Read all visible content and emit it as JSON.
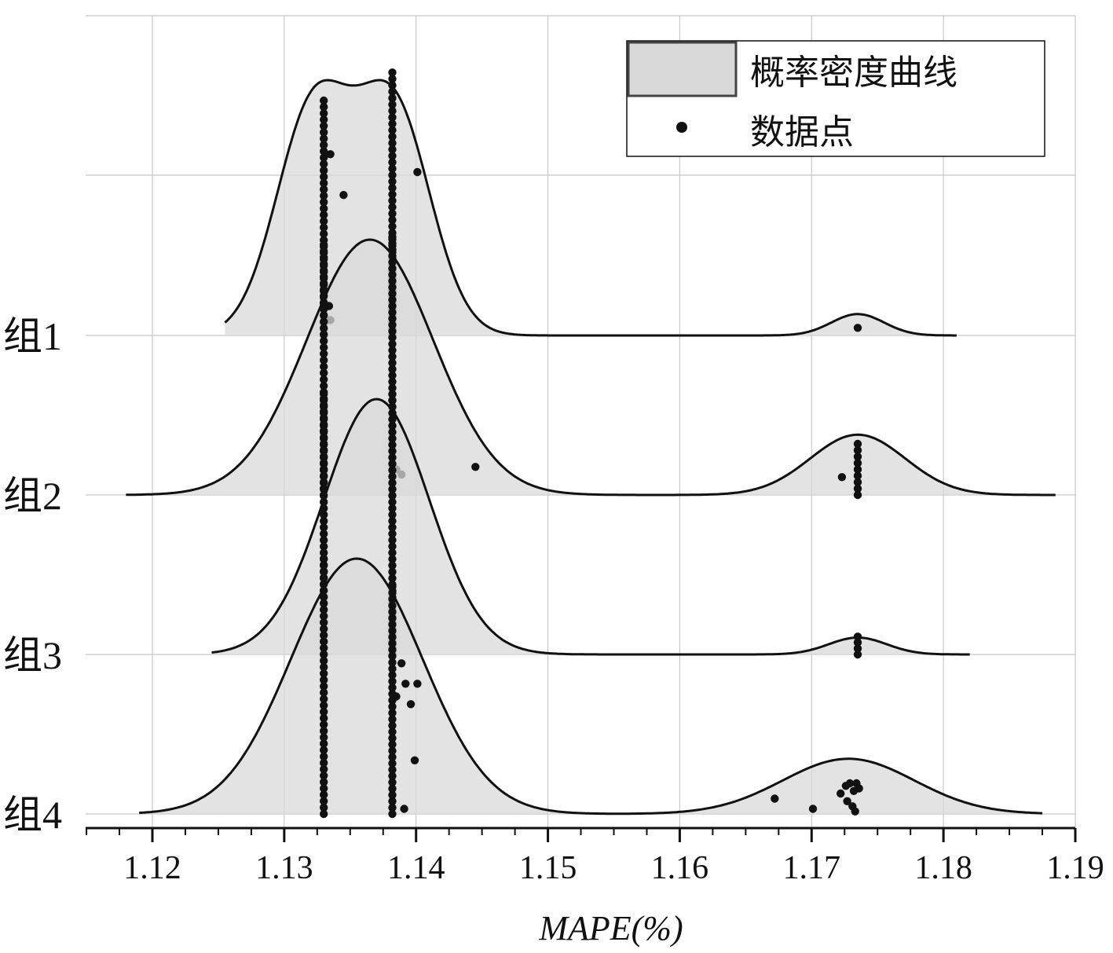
{
  "chart_data": {
    "type": "ridgeline",
    "xlabel": "MAPE(%)",
    "xlim": [
      1.115,
      1.19
    ],
    "x_ticks": [
      "1.12",
      "1.13",
      "1.14",
      "1.15",
      "1.16",
      "1.17",
      "1.18",
      "1.19"
    ],
    "grid": true,
    "legend": {
      "position": "top-right",
      "items": [
        {
          "label": "概率密度曲线",
          "kind": "density-fill"
        },
        {
          "label": "数据点",
          "kind": "point"
        }
      ]
    },
    "colors": {
      "fill": "#d9d9d9",
      "line": "#111111",
      "point": "#111111",
      "grid": "#c8c8c8"
    },
    "groups": [
      {
        "label": "组1",
        "range": [
          1.1255,
          1.181
        ],
        "components": [
          {
            "mu": 1.1322,
            "sigma": 0.0028,
            "w": 0.55
          },
          {
            "mu": 1.1383,
            "sigma": 0.0028,
            "w": 0.55
          },
          {
            "mu": 1.1735,
            "sigma": 0.002,
            "w": 0.052
          }
        ],
        "column_points": [
          {
            "x": 1.133,
            "from": 0.0,
            "to": 0.92
          },
          {
            "x": 1.1382,
            "from": 0.0,
            "to": 1.03
          }
        ],
        "points": [
          {
            "x": 1.1345,
            "y": 0.55
          },
          {
            "x": 1.1401,
            "y": 0.64
          },
          {
            "x": 1.1335,
            "y": 0.06
          },
          {
            "x": 1.1335,
            "y": 0.71
          },
          {
            "x": 1.1735,
            "y": 0.03
          }
        ]
      },
      {
        "label": "组2",
        "range": [
          1.118,
          1.1885
        ],
        "components": [
          {
            "mu": 1.1365,
            "sigma": 0.0048,
            "w": 1.0
          },
          {
            "mu": 1.1735,
            "sigma": 0.0036,
            "w": 0.236
          }
        ],
        "column_points": [
          {
            "x": 1.133,
            "from": 0.0,
            "to": 0.98
          },
          {
            "x": 1.1382,
            "from": 0.0,
            "to": 1.01
          },
          {
            "x": 1.1735,
            "from": 0.0,
            "to": 0.2
          }
        ],
        "points": [
          {
            "x": 1.1334,
            "y": 0.74
          },
          {
            "x": 1.1385,
            "y": 0.1
          },
          {
            "x": 1.1389,
            "y": 0.08
          },
          {
            "x": 1.1445,
            "y": 0.11
          },
          {
            "x": 1.1723,
            "y": 0.07
          }
        ]
      },
      {
        "label": "组3",
        "range": [
          1.1245,
          1.182
        ],
        "components": [
          {
            "mu": 1.137,
            "sigma": 0.004,
            "w": 1.0
          },
          {
            "mu": 1.1735,
            "sigma": 0.0022,
            "w": 0.066
          }
        ],
        "column_points": [
          {
            "x": 1.133,
            "from": 0.0,
            "to": 1.02
          },
          {
            "x": 1.1382,
            "from": 0.0,
            "to": 1.02
          },
          {
            "x": 1.1735,
            "from": 0.0,
            "to": 0.07
          }
        ],
        "points": []
      },
      {
        "label": "组4",
        "range": [
          1.119,
          1.1875
        ],
        "components": [
          {
            "mu": 1.1355,
            "sigma": 0.005,
            "w": 1.0
          },
          {
            "mu": 1.1728,
            "sigma": 0.005,
            "w": 0.216
          }
        ],
        "column_points": [
          {
            "x": 1.133,
            "from": 0.0,
            "to": 1.0
          },
          {
            "x": 1.1382,
            "from": 0.0,
            "to": 0.89
          }
        ],
        "points": [
          {
            "x": 1.1389,
            "y": 0.59
          },
          {
            "x": 1.1392,
            "y": 0.51
          },
          {
            "x": 1.1385,
            "y": 0.46
          },
          {
            "x": 1.1396,
            "y": 0.43
          },
          {
            "x": 1.1401,
            "y": 0.51
          },
          {
            "x": 1.1399,
            "y": 0.21
          },
          {
            "x": 1.1391,
            "y": 0.02
          },
          {
            "x": 1.1672,
            "y": 0.06
          },
          {
            "x": 1.1701,
            "y": 0.02
          },
          {
            "x": 1.1722,
            "y": 0.08
          },
          {
            "x": 1.1726,
            "y": 0.11
          },
          {
            "x": 1.1729,
            "y": 0.12
          },
          {
            "x": 1.1732,
            "y": 0.09
          },
          {
            "x": 1.1734,
            "y": 0.12
          },
          {
            "x": 1.1731,
            "y": 0.03
          },
          {
            "x": 1.1727,
            "y": 0.05
          },
          {
            "x": 1.1736,
            "y": 0.1
          },
          {
            "x": 1.1733,
            "y": 0.01
          }
        ]
      }
    ]
  }
}
